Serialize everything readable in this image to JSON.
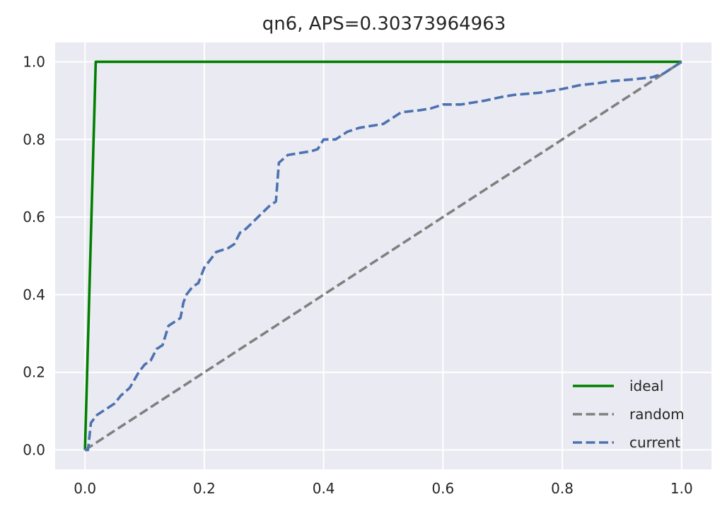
{
  "chart_data": {
    "type": "line",
    "title": "qn6, APS=0.30373964963",
    "xlabel": "",
    "ylabel": "",
    "xlim": [
      -0.05,
      1.05
    ],
    "ylim": [
      -0.05,
      1.05
    ],
    "xticks": [
      0.0,
      0.2,
      0.4,
      0.6,
      0.8,
      1.0
    ],
    "xtick_labels": [
      "0.0",
      "0.2",
      "0.4",
      "0.6",
      "0.8",
      "1.0"
    ],
    "yticks": [
      0.0,
      0.2,
      0.4,
      0.6,
      0.8,
      1.0
    ],
    "ytick_labels": [
      "0.0",
      "0.2",
      "0.4",
      "0.6",
      "0.8",
      "1.0"
    ],
    "grid": true,
    "legend_position": "lower-right",
    "background": "#eaeaf2",
    "series": [
      {
        "name": "ideal",
        "color": "#008000",
        "dash": "solid",
        "x": [
          0.0,
          0.018,
          1.0
        ],
        "y": [
          0.0,
          1.0,
          1.0
        ]
      },
      {
        "name": "random",
        "color": "#808080",
        "dash": "dashed",
        "x": [
          0.0,
          1.0
        ],
        "y": [
          0.0,
          1.0
        ]
      },
      {
        "name": "current",
        "color": "#4c72b0",
        "dash": "dashed",
        "x": [
          0.0,
          0.005,
          0.01,
          0.02,
          0.03,
          0.05,
          0.06,
          0.075,
          0.09,
          0.1,
          0.11,
          0.12,
          0.13,
          0.14,
          0.15,
          0.16,
          0.165,
          0.17,
          0.18,
          0.19,
          0.2,
          0.21,
          0.22,
          0.24,
          0.25,
          0.26,
          0.27,
          0.29,
          0.31,
          0.32,
          0.325,
          0.34,
          0.36,
          0.38,
          0.39,
          0.4,
          0.42,
          0.44,
          0.46,
          0.5,
          0.52,
          0.53,
          0.56,
          0.58,
          0.6,
          0.63,
          0.67,
          0.7,
          0.72,
          0.76,
          0.8,
          0.83,
          0.86,
          0.88,
          0.92,
          0.95,
          0.97,
          1.0
        ],
        "y": [
          0.0,
          0.0,
          0.07,
          0.09,
          0.1,
          0.12,
          0.14,
          0.16,
          0.2,
          0.22,
          0.23,
          0.26,
          0.27,
          0.32,
          0.33,
          0.34,
          0.38,
          0.4,
          0.42,
          0.43,
          0.47,
          0.49,
          0.51,
          0.52,
          0.53,
          0.56,
          0.57,
          0.6,
          0.63,
          0.64,
          0.74,
          0.76,
          0.765,
          0.77,
          0.775,
          0.8,
          0.8,
          0.82,
          0.83,
          0.84,
          0.86,
          0.87,
          0.875,
          0.88,
          0.89,
          0.89,
          0.9,
          0.91,
          0.915,
          0.92,
          0.93,
          0.94,
          0.945,
          0.95,
          0.955,
          0.96,
          0.97,
          1.0
        ]
      }
    ]
  }
}
